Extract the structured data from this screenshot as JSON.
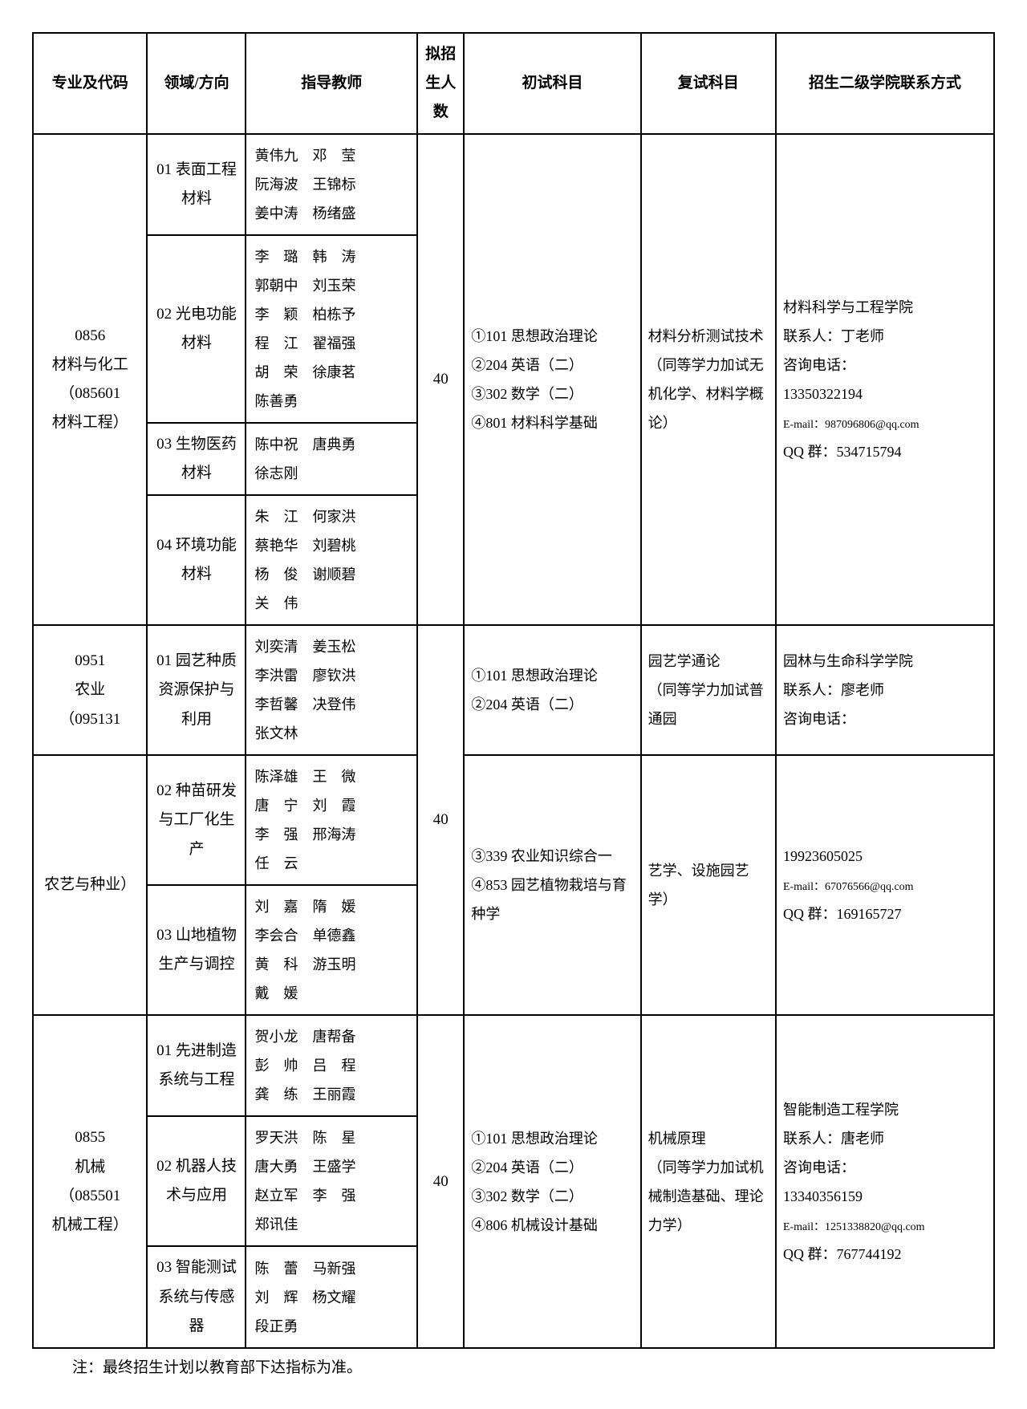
{
  "headers": {
    "col1": "专业及代码",
    "col2": "领域/方向",
    "col3": "指导教师",
    "col4": "拟招生人数",
    "col5": "初试科目",
    "col6": "复试科目",
    "col7": "招生二级学院联系方式"
  },
  "group1": {
    "major": "0856\n材料与化工\n（085601\n材料工程）",
    "quota": "40",
    "exam1": "①101 思想政治理论\n②204 英语（二）\n③302 数学（二）\n④801 材料科学基础",
    "exam2": "材料分析测试技术\n（同等学力加试无机化学、材料学概论）",
    "contact": "材料科学与工程学院\n联系人：丁老师\n咨询电话：\n13350322194",
    "contact_email": "E-mail：987096806@qq.com",
    "contact_qq": "QQ 群：534715794",
    "r1": {
      "dir": "01 表面工程材料",
      "teachers": "黄伟九　邓　莹\n阮海波　王锦标\n姜中涛　杨绪盛"
    },
    "r2": {
      "dir": "02 光电功能材料",
      "teachers": "李　璐　韩　涛\n郭朝中　刘玉荣\n李　颖　柏栋予\n程　江　翟福强\n胡　荣　徐康茗\n陈善勇"
    },
    "r3": {
      "dir": "03 生物医药材料",
      "teachers": "陈中祝　唐典勇\n徐志刚"
    },
    "r4": {
      "dir": "04 环境功能材料",
      "teachers": "朱　江　何家洪\n蔡艳华　刘碧桃\n杨　俊　谢顺碧\n关　伟"
    }
  },
  "group2": {
    "major_a": "0951\n农业\n（095131",
    "major_b": "农艺与种业）",
    "quota": "40",
    "exam1_a": "①101 思想政治理论\n②204 英语（二）",
    "exam1_b": "③339 农业知识综合一\n④853 园艺植物栽培与育种学",
    "exam2_a": "园艺学通论\n（同等学力加试普通园",
    "exam2_b": "艺学、设施园艺学）",
    "contact_a": "园林与生命科学学院\n联系人：廖老师\n咨询电话：",
    "contact_b": "19923605025",
    "contact_b_email": "E-mail：67076566@qq.com",
    "contact_b_qq": "QQ 群：169165727",
    "r1": {
      "dir": "01 园艺种质资源保护与利用",
      "teachers": "刘奕清　姜玉松\n李洪雷　廖钦洪\n李哲馨　决登伟\n张文林"
    },
    "r2": {
      "dir": "02 种苗研发与工厂化生产",
      "teachers": "陈泽雄　王　微\n唐　宁　刘　霞\n李　强　邢海涛\n任　云"
    },
    "r3": {
      "dir": "03 山地植物生产与调控",
      "teachers": "刘　嘉　隋　媛\n李会合　单德鑫\n黄　科　游玉明\n戴　媛"
    }
  },
  "group3": {
    "major": "0855\n机械\n（085501\n机械工程）",
    "quota": "40",
    "exam1": "①101 思想政治理论\n②204 英语（二）\n③302 数学（二）\n④806 机械设计基础",
    "exam2": "机械原理\n（同等学力加试机械制造基础、理论力学）",
    "contact": "智能制造工程学院\n联系人：唐老师\n咨询电话：\n13340356159",
    "contact_email": "E-mail：1251338820@qq.com",
    "contact_qq": "QQ 群：767744192",
    "r1": {
      "dir": "01 先进制造系统与工程",
      "teachers": "贺小龙　唐帮备\n彭　帅　吕　程\n龚　练　王丽霞"
    },
    "r2": {
      "dir": "02 机器人技术与应用",
      "teachers": "罗天洪　陈　星\n唐大勇　王盛学\n赵立军　李　强\n郑讯佳"
    },
    "r3": {
      "dir": "03 智能测试系统与传感器",
      "teachers": "陈　蕾　马新强\n刘　辉　杨文耀\n段正勇"
    }
  },
  "note": "注：最终招生计划以教育部下达指标为准。"
}
